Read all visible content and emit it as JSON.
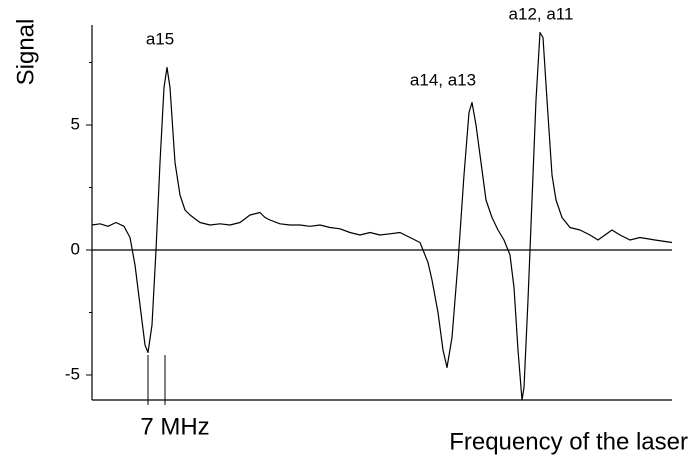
{
  "chart_data": {
    "type": "line",
    "y_label": "Signal",
    "x_label": "Frequency of the laser",
    "annotations": [
      "a15",
      "a14, a13",
      "a12, a11"
    ],
    "scale_bar": {
      "label": "7 MHz",
      "x": [
        56,
        73
      ]
    },
    "color": "#000000",
    "zero_line": true,
    "xlim": [
      0,
      580
    ],
    "ylim": [
      -6,
      9
    ],
    "yticks": [
      -5,
      0,
      5
    ],
    "yminor_ticks": [
      -2.5,
      2.5,
      7.5
    ],
    "x": [
      0,
      8,
      16,
      24,
      32,
      38,
      43,
      48,
      53,
      56,
      60,
      64,
      68,
      72,
      75,
      78,
      83,
      88,
      93,
      98,
      108,
      118,
      128,
      138,
      148,
      158,
      168,
      173,
      178,
      188,
      198,
      208,
      218,
      228,
      238,
      248,
      258,
      268,
      278,
      288,
      298,
      308,
      318,
      328,
      336,
      340,
      346,
      351,
      355,
      360,
      366,
      372,
      377,
      380,
      384,
      388,
      394,
      400,
      406,
      412,
      418,
      422,
      426,
      430,
      432,
      436,
      440,
      444,
      448,
      451,
      455,
      460,
      464,
      470,
      478,
      488,
      498,
      506,
      513,
      520,
      528,
      538,
      548,
      563,
      580
    ],
    "values": [
      1.0,
      1.05,
      0.95,
      1.1,
      0.95,
      0.5,
      -0.6,
      -2.2,
      -3.8,
      -4.1,
      -3.0,
      0.0,
      3.5,
      6.5,
      7.3,
      6.5,
      3.5,
      2.2,
      1.6,
      1.4,
      1.1,
      1.0,
      1.05,
      1.0,
      1.1,
      1.4,
      1.5,
      1.3,
      1.2,
      1.05,
      1.0,
      1.0,
      0.95,
      1.0,
      0.9,
      0.85,
      0.7,
      0.6,
      0.7,
      0.6,
      0.65,
      0.7,
      0.5,
      0.3,
      -0.5,
      -1.2,
      -2.5,
      -4.0,
      -4.7,
      -3.5,
      -0.5,
      3.0,
      5.5,
      5.9,
      5.0,
      3.8,
      2.0,
      1.3,
      0.8,
      0.4,
      -0.2,
      -1.5,
      -4.0,
      -6.0,
      -5.5,
      -2.0,
      2.0,
      6.0,
      8.7,
      8.5,
      6.0,
      3.0,
      2.0,
      1.3,
      0.9,
      0.8,
      0.6,
      0.4,
      0.6,
      0.8,
      0.6,
      0.4,
      0.5,
      0.4,
      0.3
    ]
  }
}
